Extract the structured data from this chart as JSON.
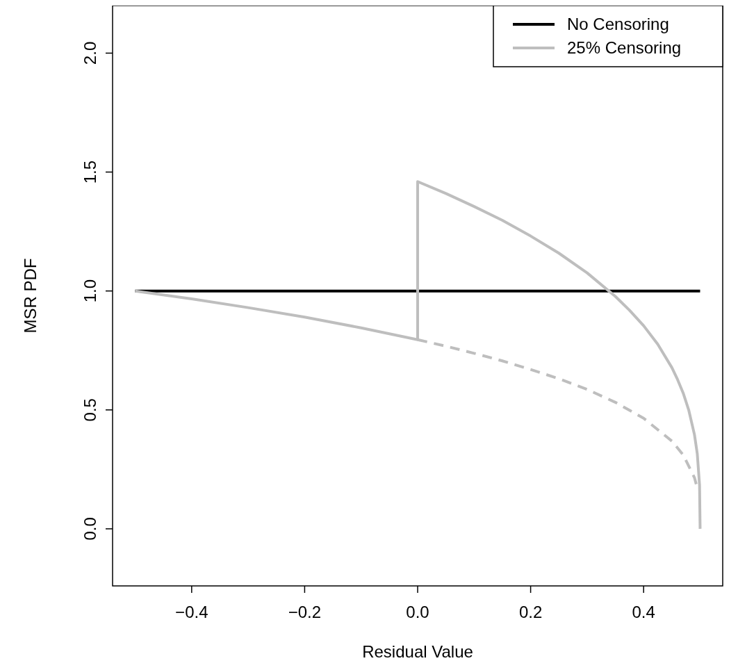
{
  "chart_data": {
    "type": "line",
    "xlabel": "Residual Value",
    "ylabel": "MSR PDF",
    "xlim": [
      -0.54,
      0.54
    ],
    "ylim": [
      -0.24,
      2.2
    ],
    "xticks": [
      {
        "value": -0.4,
        "label": "−0.4"
      },
      {
        "value": -0.2,
        "label": "−0.2"
      },
      {
        "value": 0,
        "label": "0.0"
      },
      {
        "value": 0.2,
        "label": "0.2"
      },
      {
        "value": 0.4,
        "label": "0.4"
      }
    ],
    "yticks": [
      {
        "value": 0,
        "label": "0.0"
      },
      {
        "value": 0.5,
        "label": "0.5"
      },
      {
        "value": 1,
        "label": "1.0"
      },
      {
        "value": 1.5,
        "label": "1.5"
      },
      {
        "value": 2,
        "label": "2.0"
      }
    ],
    "grid": false,
    "legend": "top right",
    "series": [
      {
        "name": "No Censoring",
        "color": "#000000",
        "line_style": "solid",
        "x": [
          -0.5,
          0.5
        ],
        "values": [
          1,
          1
        ]
      },
      {
        "name": "25% Censoring",
        "color": "#bebebe",
        "line_style": "solid",
        "x": [
          -0.5,
          -0.4,
          -0.3,
          -0.2,
          -0.1,
          0,
          0,
          0.05,
          0.1,
          0.15,
          0.2,
          0.25,
          0.3,
          0.35,
          0.375,
          0.4,
          0.425,
          0.45,
          0.46,
          0.47,
          0.48,
          0.49,
          0.495,
          0.499,
          0.5
        ],
        "values": [
          1,
          0.967,
          0.93,
          0.89,
          0.845,
          0.795,
          1.46,
          1.41,
          1.355,
          1.297,
          1.231,
          1.159,
          1.076,
          0.977,
          0.919,
          0.854,
          0.776,
          0.678,
          0.628,
          0.571,
          0.498,
          0.396,
          0.315,
          0.184,
          0
        ]
      },
      {
        "color": "#bebebe",
        "line_style": "dashed",
        "x": [
          0,
          0.05,
          0.1,
          0.15,
          0.2,
          0.25,
          0.3,
          0.35,
          0.4,
          0.45,
          0.47,
          0.49,
          0.495
        ],
        "values": [
          0.795,
          0.768,
          0.738,
          0.706,
          0.67,
          0.631,
          0.586,
          0.532,
          0.465,
          0.369,
          0.311,
          0.215,
          0.171
        ]
      }
    ]
  }
}
